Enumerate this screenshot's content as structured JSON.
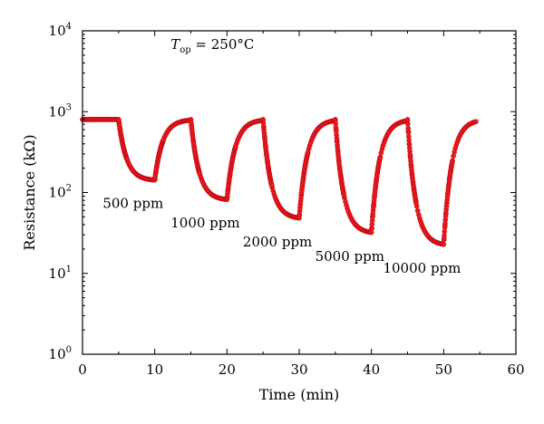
{
  "chart_data": {
    "type": "scatter",
    "x_label": "Time (min)",
    "y_label": "Resistance (kΩ)",
    "x_range": [
      0,
      60
    ],
    "x_ticks": [
      0,
      10,
      20,
      30,
      40,
      50,
      60
    ],
    "y_scale": "log",
    "y_range": [
      1,
      10000
    ],
    "y_ticks": [
      {
        "base": "10",
        "exp": "0",
        "value": 1
      },
      {
        "base": "10",
        "exp": "1",
        "value": 10
      },
      {
        "base": "10",
        "exp": "2",
        "value": 100
      },
      {
        "base": "10",
        "exp": "3",
        "value": 1000
      },
      {
        "base": "10",
        "exp": "4",
        "value": 10000
      }
    ],
    "grid": false,
    "marker_color": "#e8191e",
    "condition_label": {
      "symbol": "T",
      "subscript": "op",
      "text": " = 250°C"
    },
    "baseline_resistance": 800,
    "cycles": [
      {
        "label": "500 ppm",
        "on": 5,
        "off": 10,
        "min_resistance": 140
      },
      {
        "label": "1000 ppm",
        "on": 15,
        "off": 20,
        "min_resistance": 80
      },
      {
        "label": "2000 ppm",
        "on": 25,
        "off": 30,
        "min_resistance": 47
      },
      {
        "label": "5000 ppm",
        "on": 35,
        "off": 40,
        "min_resistance": 31
      },
      {
        "label": "10000 ppm",
        "on": 45,
        "off": 50,
        "min_resistance": 22
      }
    ],
    "end_time": 54.5
  }
}
